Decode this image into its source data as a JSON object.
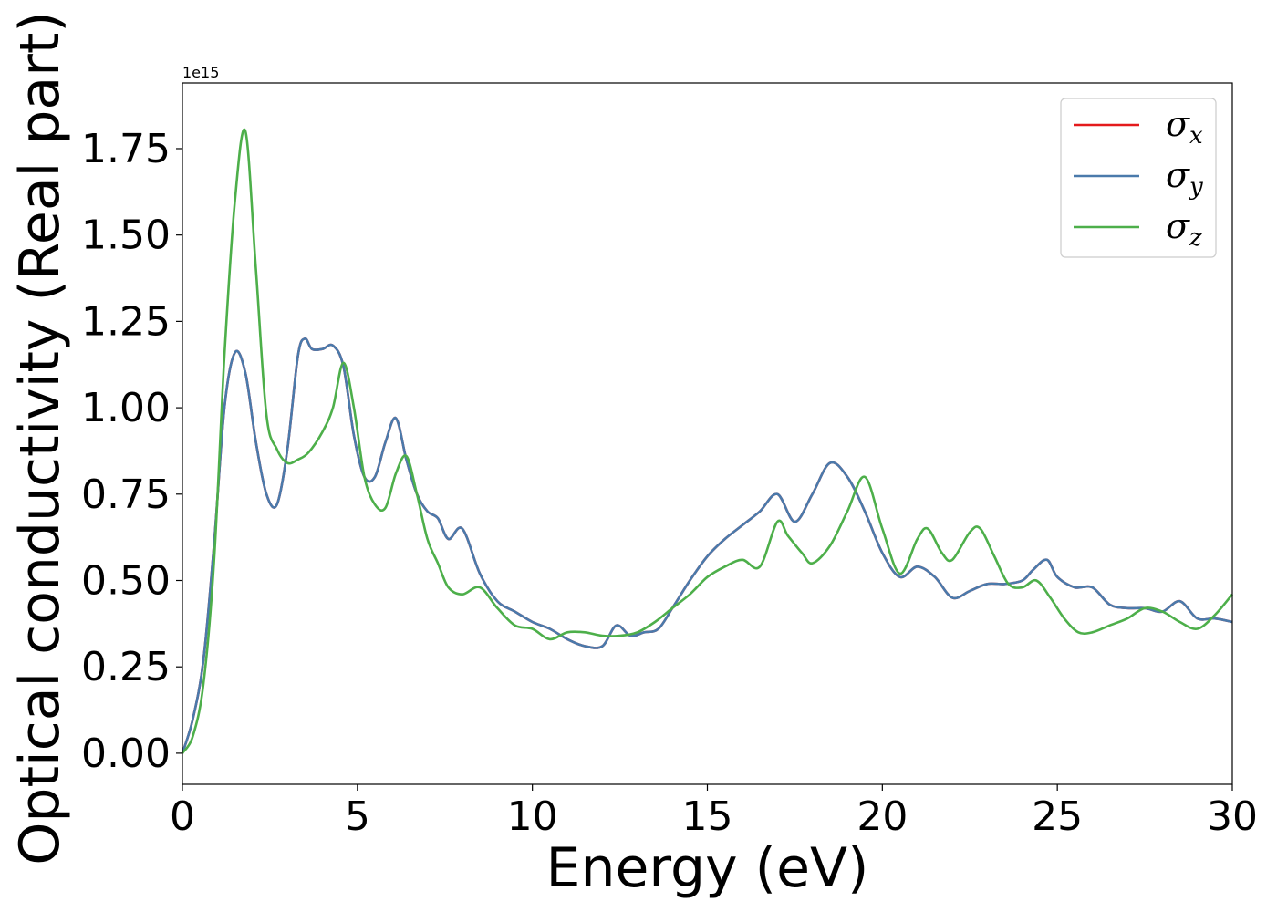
{
  "chart_data": {
    "type": "line",
    "title": "",
    "xlabel": "Energy (eV)",
    "ylabel": "Optical conductivity (Real part)",
    "y_offset_label": "1e15",
    "xlim": [
      0,
      30
    ],
    "ylim": [
      -0.09,
      1.94
    ],
    "x_ticks": [
      0,
      5,
      10,
      15,
      20,
      25,
      30
    ],
    "x_tick_labels": [
      "0",
      "5",
      "10",
      "15",
      "20",
      "25",
      "30"
    ],
    "y_ticks": [
      0,
      0.25,
      0.5,
      0.75,
      1.0,
      1.25,
      1.5,
      1.75
    ],
    "y_tick_labels": [
      "0.00",
      "0.25",
      "0.50",
      "0.75",
      "1.00",
      "1.25",
      "1.50",
      "1.75"
    ],
    "grid": false,
    "legend": "top-right",
    "series": [
      {
        "name": "x",
        "legend_symbol": "σ",
        "color": "#e41a1c",
        "x": [
          0,
          0.3,
          0.6,
          0.9,
          1.2,
          1.5,
          1.8,
          2.1,
          2.4,
          2.7,
          3.0,
          3.3,
          3.5,
          3.7,
          4.0,
          4.3,
          4.6,
          4.9,
          5.2,
          5.5,
          5.8,
          6.1,
          6.4,
          6.7,
          7.0,
          7.3,
          7.6,
          8.0,
          8.5,
          9.0,
          9.5,
          10.0,
          10.5,
          11.0,
          11.5,
          12.0,
          12.4,
          12.8,
          13.2,
          13.6,
          14.0,
          14.5,
          15.0,
          15.5,
          16.0,
          16.5,
          17.0,
          17.5,
          18.0,
          18.5,
          19.0,
          19.5,
          20.0,
          20.5,
          21.0,
          21.5,
          22.0,
          22.5,
          23.0,
          23.5,
          24.0,
          24.3,
          24.7,
          25.0,
          25.5,
          26.0,
          26.5,
          27.0,
          27.5,
          28.0,
          28.5,
          29.0,
          29.5,
          30.0
        ],
        "values": [
          0.0,
          0.1,
          0.27,
          0.6,
          1.0,
          1.16,
          1.1,
          0.9,
          0.75,
          0.72,
          0.88,
          1.15,
          1.2,
          1.17,
          1.17,
          1.18,
          1.12,
          0.92,
          0.8,
          0.8,
          0.9,
          0.97,
          0.85,
          0.75,
          0.7,
          0.68,
          0.62,
          0.65,
          0.52,
          0.44,
          0.41,
          0.38,
          0.36,
          0.33,
          0.31,
          0.31,
          0.37,
          0.34,
          0.35,
          0.36,
          0.42,
          0.5,
          0.57,
          0.62,
          0.66,
          0.7,
          0.75,
          0.67,
          0.75,
          0.84,
          0.8,
          0.7,
          0.58,
          0.51,
          0.54,
          0.51,
          0.45,
          0.47,
          0.49,
          0.49,
          0.5,
          0.53,
          0.56,
          0.51,
          0.48,
          0.48,
          0.43,
          0.42,
          0.42,
          0.41,
          0.44,
          0.39,
          0.39,
          0.38
        ]
      },
      {
        "name": "y",
        "legend_symbol": "σ",
        "color": "#4a7aab",
        "x": [
          0,
          0.3,
          0.6,
          0.9,
          1.2,
          1.5,
          1.8,
          2.1,
          2.4,
          2.7,
          3.0,
          3.3,
          3.5,
          3.7,
          4.0,
          4.3,
          4.6,
          4.9,
          5.2,
          5.5,
          5.8,
          6.1,
          6.4,
          6.7,
          7.0,
          7.3,
          7.6,
          8.0,
          8.5,
          9.0,
          9.5,
          10.0,
          10.5,
          11.0,
          11.5,
          12.0,
          12.4,
          12.8,
          13.2,
          13.6,
          14.0,
          14.5,
          15.0,
          15.5,
          16.0,
          16.5,
          17.0,
          17.5,
          18.0,
          18.5,
          19.0,
          19.5,
          20.0,
          20.5,
          21.0,
          21.5,
          22.0,
          22.5,
          23.0,
          23.5,
          24.0,
          24.3,
          24.7,
          25.0,
          25.5,
          26.0,
          26.5,
          27.0,
          27.5,
          28.0,
          28.5,
          29.0,
          29.5,
          30.0
        ],
        "values": [
          0.0,
          0.1,
          0.27,
          0.6,
          1.0,
          1.16,
          1.1,
          0.9,
          0.75,
          0.72,
          0.88,
          1.15,
          1.2,
          1.17,
          1.17,
          1.18,
          1.12,
          0.92,
          0.8,
          0.8,
          0.9,
          0.97,
          0.85,
          0.75,
          0.7,
          0.68,
          0.62,
          0.65,
          0.52,
          0.44,
          0.41,
          0.38,
          0.36,
          0.33,
          0.31,
          0.31,
          0.37,
          0.34,
          0.35,
          0.36,
          0.42,
          0.5,
          0.57,
          0.62,
          0.66,
          0.7,
          0.75,
          0.67,
          0.75,
          0.84,
          0.8,
          0.7,
          0.58,
          0.51,
          0.54,
          0.51,
          0.45,
          0.47,
          0.49,
          0.49,
          0.5,
          0.53,
          0.56,
          0.51,
          0.48,
          0.48,
          0.43,
          0.42,
          0.42,
          0.41,
          0.44,
          0.39,
          0.39,
          0.38
        ]
      },
      {
        "name": "z",
        "legend_symbol": "σ",
        "color": "#4daf4a",
        "x": [
          0,
          0.3,
          0.6,
          0.9,
          1.2,
          1.5,
          1.8,
          2.1,
          2.4,
          2.7,
          3.0,
          3.3,
          3.6,
          4.0,
          4.3,
          4.6,
          4.9,
          5.2,
          5.5,
          5.8,
          6.1,
          6.4,
          6.7,
          7.0,
          7.3,
          7.6,
          8.0,
          8.5,
          9.0,
          9.5,
          10.0,
          10.5,
          11.0,
          11.5,
          12.0,
          12.5,
          13.0,
          13.5,
          14.0,
          14.5,
          15.0,
          15.5,
          16.0,
          16.5,
          17.0,
          17.3,
          17.7,
          18.0,
          18.5,
          19.0,
          19.5,
          20.0,
          20.5,
          21.0,
          21.3,
          21.7,
          22.0,
          22.5,
          22.8,
          23.2,
          23.6,
          24.0,
          24.4,
          24.8,
          25.2,
          25.6,
          26.0,
          26.5,
          27.0,
          27.5,
          28.0,
          28.5,
          29.0,
          29.5,
          30.0
        ],
        "values": [
          0.0,
          0.05,
          0.2,
          0.55,
          1.15,
          1.6,
          1.8,
          1.4,
          0.98,
          0.88,
          0.84,
          0.85,
          0.87,
          0.93,
          1.0,
          1.13,
          1.0,
          0.8,
          0.72,
          0.71,
          0.81,
          0.86,
          0.75,
          0.62,
          0.55,
          0.48,
          0.46,
          0.48,
          0.42,
          0.37,
          0.36,
          0.33,
          0.35,
          0.35,
          0.34,
          0.34,
          0.35,
          0.38,
          0.42,
          0.46,
          0.51,
          0.54,
          0.56,
          0.54,
          0.67,
          0.63,
          0.58,
          0.55,
          0.6,
          0.7,
          0.8,
          0.65,
          0.52,
          0.62,
          0.65,
          0.58,
          0.56,
          0.64,
          0.65,
          0.57,
          0.49,
          0.48,
          0.5,
          0.45,
          0.39,
          0.35,
          0.35,
          0.37,
          0.39,
          0.42,
          0.41,
          0.38,
          0.36,
          0.4,
          0.46
        ]
      }
    ]
  }
}
